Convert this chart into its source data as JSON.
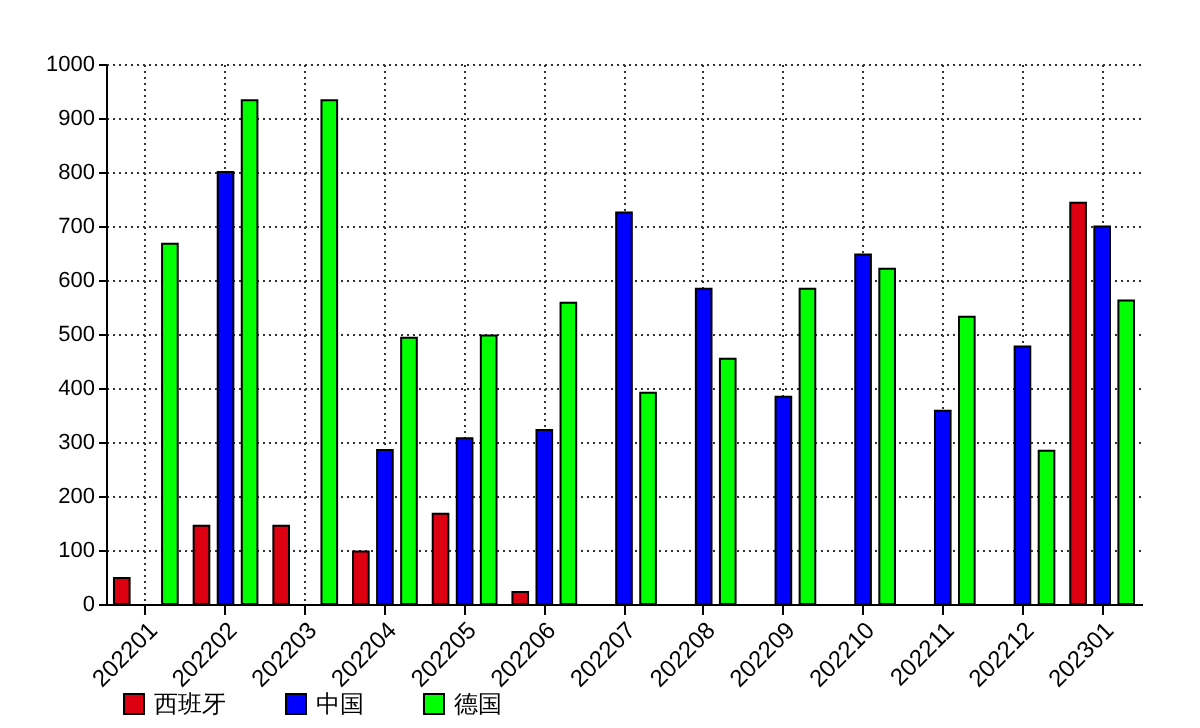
{
  "chart_data": {
    "type": "bar",
    "categories": [
      "202201",
      "202202",
      "202203",
      "202204",
      "202205",
      "202206",
      "202207",
      "202208",
      "202209",
      "202210",
      "202211",
      "202212",
      "202301"
    ],
    "series": [
      {
        "name": "西班牙",
        "color": "#dd0011",
        "values": [
          48,
          145,
          145,
          97,
          167,
          22,
          null,
          null,
          null,
          null,
          null,
          null,
          743
        ]
      },
      {
        "name": "中国",
        "color": "#0000ff",
        "values": [
          null,
          800,
          null,
          285,
          307,
          322,
          725,
          584,
          384,
          647,
          358,
          477,
          699
        ]
      },
      {
        "name": "德国",
        "color": "#00ff00",
        "values": [
          667,
          933,
          933,
          493,
          497,
          558,
          391,
          454,
          584,
          621,
          532,
          284,
          562
        ]
      }
    ],
    "ylim": [
      0,
      1000
    ],
    "yticks": [
      0,
      100,
      200,
      300,
      400,
      500,
      600,
      700,
      800,
      900,
      1000
    ],
    "grid": true,
    "legend": "bottom left"
  }
}
